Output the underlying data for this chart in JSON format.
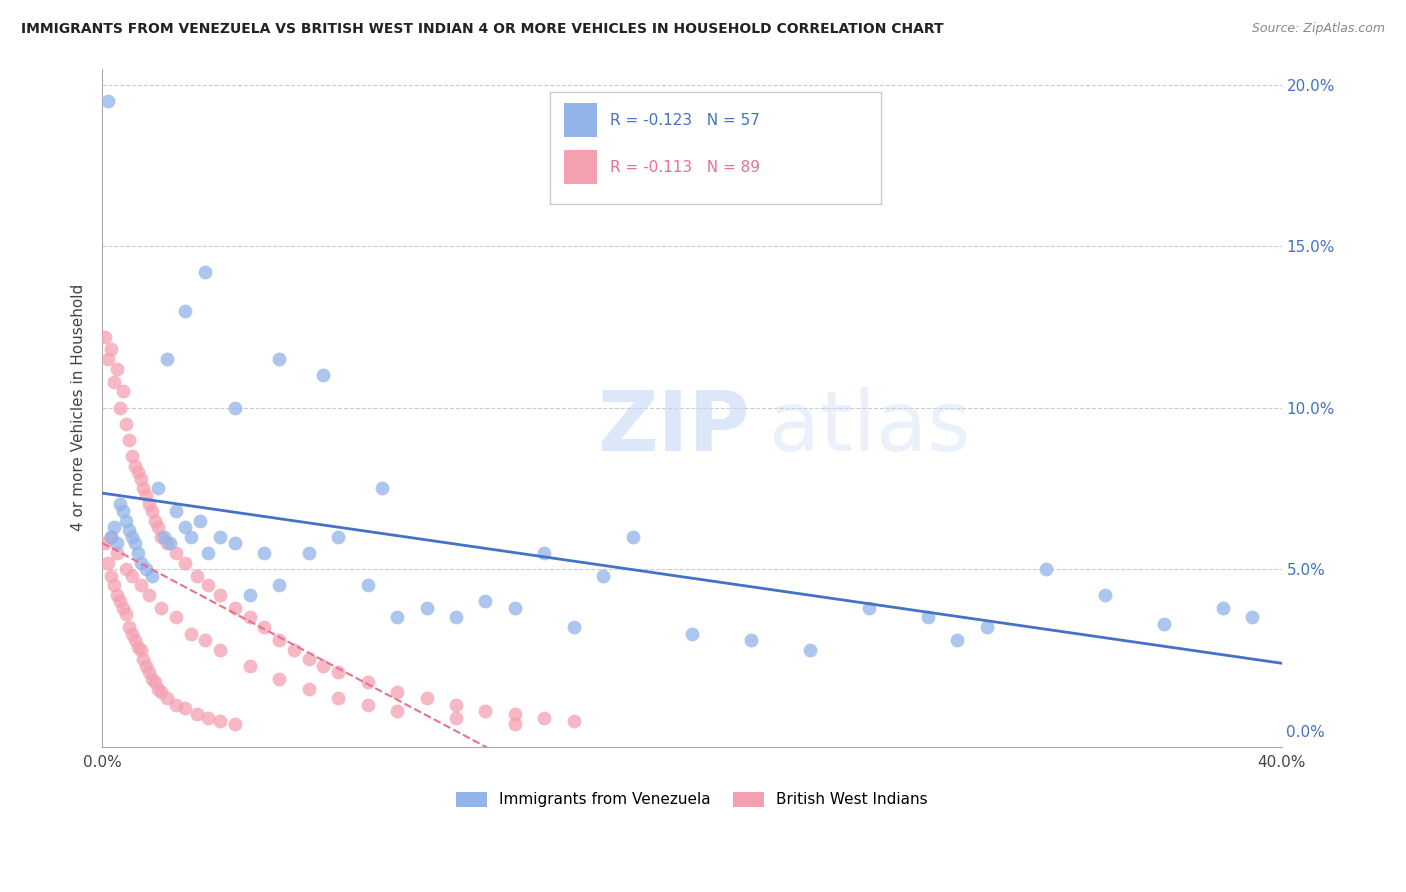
{
  "title": "IMMIGRANTS FROM VENEZUELA VS BRITISH WEST INDIAN 4 OR MORE VEHICLES IN HOUSEHOLD CORRELATION CHART",
  "source": "Source: ZipAtlas.com",
  "ylabel": "4 or more Vehicles in Household",
  "xlim": [
    0.0,
    0.4
  ],
  "ylim": [
    -0.005,
    0.205
  ],
  "xticks": [
    0.0,
    0.05,
    0.1,
    0.15,
    0.2,
    0.25,
    0.3,
    0.35,
    0.4
  ],
  "xticklabels": [
    "0.0%",
    "",
    "",
    "",
    "",
    "",
    "",
    "",
    "40.0%"
  ],
  "yticks": [
    0.0,
    0.05,
    0.1,
    0.15,
    0.2
  ],
  "yticklabels_right": [
    "0.0%",
    "5.0%",
    "10.0%",
    "15.0%",
    "20.0%"
  ],
  "blue_label": "Immigrants from Venezuela",
  "pink_label": "British West Indians",
  "blue_R": "-0.123",
  "blue_N": "57",
  "pink_R": "-0.113",
  "pink_N": "89",
  "blue_color": "#92b4e8",
  "pink_color": "#f4a0b0",
  "blue_line_color": "#4472c4",
  "pink_line_color": "#e87090",
  "watermark_zip": "ZIP",
  "watermark_atlas": "atlas",
  "blue_scatter_x": [
    0.002,
    0.003,
    0.004,
    0.005,
    0.006,
    0.007,
    0.008,
    0.009,
    0.01,
    0.011,
    0.012,
    0.013,
    0.015,
    0.017,
    0.019,
    0.021,
    0.023,
    0.025,
    0.028,
    0.03,
    0.033,
    0.036,
    0.04,
    0.045,
    0.05,
    0.055,
    0.06,
    0.07,
    0.08,
    0.09,
    0.1,
    0.11,
    0.12,
    0.13,
    0.14,
    0.15,
    0.16,
    0.17,
    0.18,
    0.2,
    0.22,
    0.24,
    0.26,
    0.28,
    0.3,
    0.32,
    0.34,
    0.36,
    0.38,
    0.39,
    0.022,
    0.028,
    0.035,
    0.045,
    0.06,
    0.075,
    0.095,
    0.29
  ],
  "blue_scatter_y": [
    0.195,
    0.06,
    0.063,
    0.058,
    0.07,
    0.068,
    0.065,
    0.062,
    0.06,
    0.058,
    0.055,
    0.052,
    0.05,
    0.048,
    0.075,
    0.06,
    0.058,
    0.068,
    0.063,
    0.06,
    0.065,
    0.055,
    0.06,
    0.058,
    0.042,
    0.055,
    0.045,
    0.055,
    0.06,
    0.045,
    0.035,
    0.038,
    0.035,
    0.04,
    0.038,
    0.055,
    0.032,
    0.048,
    0.06,
    0.03,
    0.028,
    0.025,
    0.038,
    0.035,
    0.032,
    0.05,
    0.042,
    0.033,
    0.038,
    0.035,
    0.115,
    0.13,
    0.142,
    0.1,
    0.115,
    0.11,
    0.075,
    0.028
  ],
  "pink_scatter_x": [
    0.001,
    0.001,
    0.002,
    0.002,
    0.003,
    0.003,
    0.004,
    0.004,
    0.005,
    0.005,
    0.006,
    0.006,
    0.007,
    0.007,
    0.008,
    0.008,
    0.009,
    0.009,
    0.01,
    0.01,
    0.011,
    0.011,
    0.012,
    0.012,
    0.013,
    0.013,
    0.014,
    0.014,
    0.015,
    0.015,
    0.016,
    0.016,
    0.017,
    0.017,
    0.018,
    0.018,
    0.019,
    0.019,
    0.02,
    0.02,
    0.022,
    0.022,
    0.025,
    0.025,
    0.028,
    0.028,
    0.032,
    0.032,
    0.036,
    0.036,
    0.04,
    0.04,
    0.045,
    0.045,
    0.05,
    0.055,
    0.06,
    0.065,
    0.07,
    0.075,
    0.08,
    0.09,
    0.1,
    0.11,
    0.12,
    0.13,
    0.14,
    0.15,
    0.16,
    0.003,
    0.005,
    0.008,
    0.01,
    0.013,
    0.016,
    0.02,
    0.025,
    0.03,
    0.035,
    0.04,
    0.05,
    0.06,
    0.07,
    0.08,
    0.09,
    0.1,
    0.12,
    0.14
  ],
  "pink_scatter_y": [
    0.122,
    0.058,
    0.115,
    0.052,
    0.118,
    0.048,
    0.108,
    0.045,
    0.112,
    0.042,
    0.1,
    0.04,
    0.105,
    0.038,
    0.095,
    0.036,
    0.09,
    0.032,
    0.085,
    0.03,
    0.082,
    0.028,
    0.08,
    0.026,
    0.078,
    0.025,
    0.075,
    0.022,
    0.073,
    0.02,
    0.07,
    0.018,
    0.068,
    0.016,
    0.065,
    0.015,
    0.063,
    0.013,
    0.06,
    0.012,
    0.058,
    0.01,
    0.055,
    0.008,
    0.052,
    0.007,
    0.048,
    0.005,
    0.045,
    0.004,
    0.042,
    0.003,
    0.038,
    0.002,
    0.035,
    0.032,
    0.028,
    0.025,
    0.022,
    0.02,
    0.018,
    0.015,
    0.012,
    0.01,
    0.008,
    0.006,
    0.005,
    0.004,
    0.003,
    0.06,
    0.055,
    0.05,
    0.048,
    0.045,
    0.042,
    0.038,
    0.035,
    0.03,
    0.028,
    0.025,
    0.02,
    0.016,
    0.013,
    0.01,
    0.008,
    0.006,
    0.004,
    0.002
  ]
}
